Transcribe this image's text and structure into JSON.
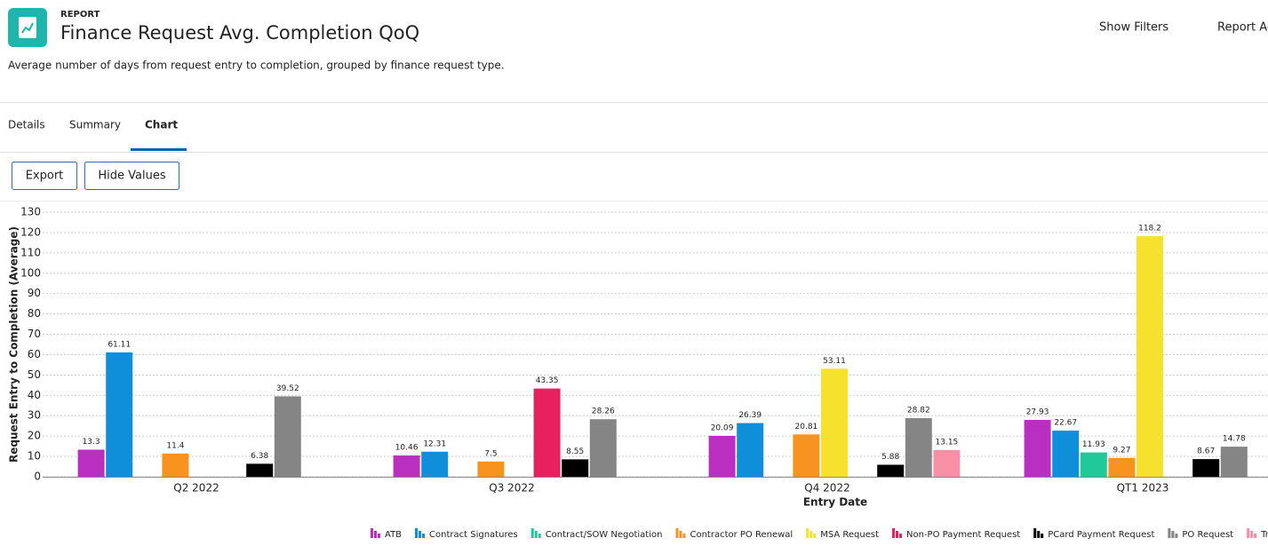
{
  "header": {
    "eyebrow": "REPORT",
    "title": "Finance Request Avg. Completion QoQ",
    "subtitle": "Average number of days from request entry to completion, grouped by finance request type."
  },
  "actions": [
    "Show Filters",
    "Report Ac"
  ],
  "tabs": [
    "Details",
    "Summary",
    "Chart"
  ],
  "buttons": [
    "Export",
    "Hide Values"
  ],
  "chart_data": {
    "type": "bar",
    "y_label": "Request Entry to Completion (Average)",
    "x_label": "Entry Date",
    "categories": [
      "Q2 2022",
      "Q3 2022",
      "Q4 2022",
      "QT1 2023"
    ],
    "series": [
      {
        "name": "ATB",
        "color": "#b92fc0",
        "values": [
          13.3,
          10.46,
          20.09,
          27.93
        ]
      },
      {
        "name": "Contract Signatures",
        "color": "#0f8fd9",
        "values": [
          61.11,
          12.31,
          26.39,
          22.67
        ]
      },
      {
        "name": "Contract/SOW Negotiation",
        "color": "#1fc99a",
        "values": [
          null,
          null,
          null,
          11.93
        ]
      },
      {
        "name": "Contractor PO Renewal",
        "color": "#f7931e",
        "values": [
          11.4,
          7.5,
          20.81,
          9.27
        ]
      },
      {
        "name": "MSA Request",
        "color": "#f5e12e",
        "values": [
          null,
          null,
          53.11,
          118.2
        ]
      },
      {
        "name": "Non-PO Payment Request",
        "color": "#e8205f",
        "values": [
          null,
          43.35,
          null,
          null
        ]
      },
      {
        "name": "PCard Payment Request",
        "color": "#000000",
        "values": [
          6.38,
          8.55,
          5.88,
          8.67
        ]
      },
      {
        "name": "PO Request",
        "color": "#858585",
        "values": [
          39.52,
          28.26,
          28.82,
          14.78
        ]
      },
      {
        "name": "Travel Budget Veri",
        "color": "#f78fa7",
        "values": [
          null,
          null,
          13.15,
          null
        ]
      }
    ],
    "ylim": [
      0,
      130
    ],
    "yticks": [
      0,
      10,
      20,
      30,
      40,
      50,
      60,
      70,
      80,
      90,
      100,
      110,
      120,
      130
    ],
    "grid": true
  }
}
